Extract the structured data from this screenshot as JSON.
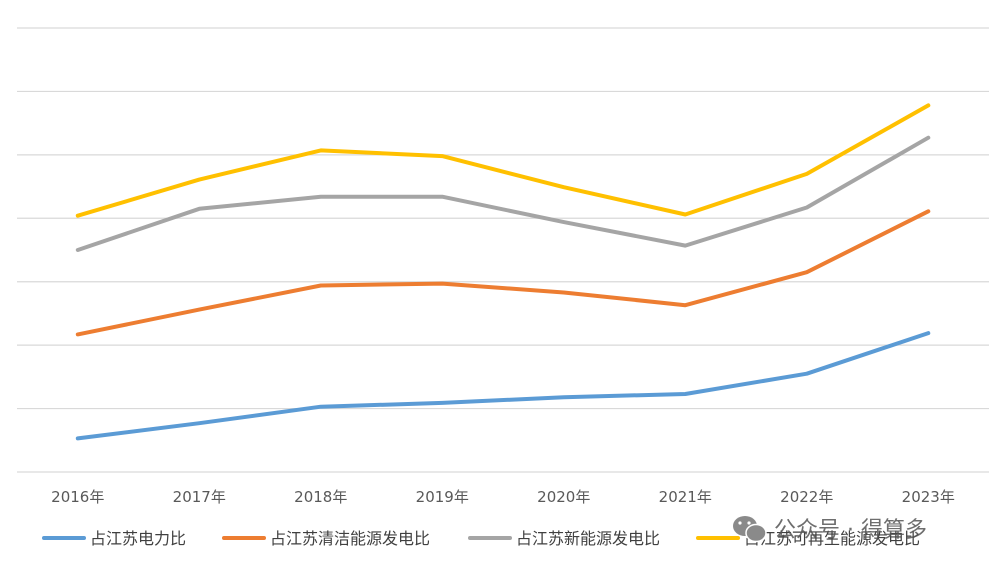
{
  "chart_data": {
    "type": "line",
    "categories": [
      "2016年",
      "2017年",
      "2018年",
      "2019年",
      "2020年",
      "2021年",
      "2022年",
      "2023年"
    ],
    "series": [
      {
        "name": "占江苏电力比",
        "color": "#5B9BD5",
        "values": [
          0.53,
          0.77,
          1.03,
          1.09,
          1.18,
          1.23,
          1.55,
          2.19
        ]
      },
      {
        "name": "占江苏清洁能源发电比",
        "color": "#ED7D31",
        "values": [
          2.17,
          2.56,
          2.94,
          2.97,
          2.83,
          2.63,
          3.15,
          4.11
        ]
      },
      {
        "name": "占江苏新能源发电比",
        "color": "#A5A5A5",
        "values": [
          3.5,
          4.15,
          4.34,
          4.34,
          3.94,
          3.57,
          4.17,
          5.27
        ]
      },
      {
        "name": "占江苏可再生能源发电比",
        "color": "#FFC000",
        "values": [
          4.04,
          4.61,
          5.07,
          4.98,
          4.49,
          4.06,
          4.7,
          5.78
        ]
      }
    ],
    "ylim": [
      0,
      7
    ],
    "grid": true,
    "y_tick_labels_shown": false,
    "legend_position": "bottom"
  },
  "watermark": {
    "text": "公众号 · 得算多",
    "icon": "wechat-icon"
  }
}
